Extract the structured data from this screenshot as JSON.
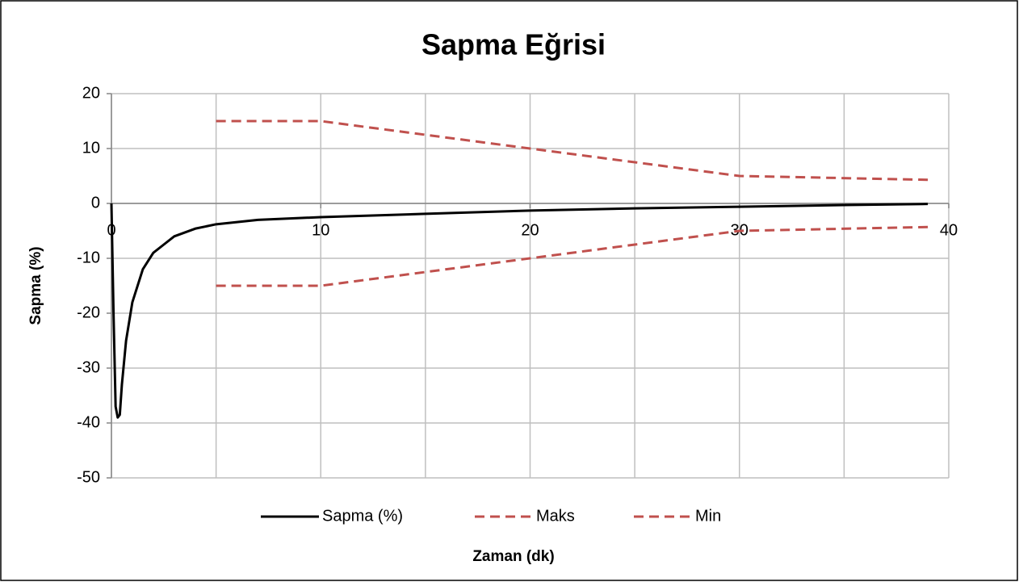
{
  "chart_data": {
    "type": "line",
    "title": "Sapma Eğrisi",
    "xlabel": "Zaman (dk)",
    "ylabel": "Sapma (%)",
    "xlim": [
      0,
      40
    ],
    "xticks": [
      0,
      10,
      20,
      30,
      40
    ],
    "x_minor_ticks": [
      5,
      15,
      25,
      35
    ],
    "ylim": [
      -50,
      20
    ],
    "yticks": [
      -50,
      -40,
      -30,
      -20,
      -10,
      0,
      10,
      20
    ],
    "grid": true,
    "legend": "bottom",
    "series": [
      {
        "name": "Sapma (%)",
        "color": "#000000",
        "dash": false,
        "x": [
          0,
          0.1,
          0.2,
          0.3,
          0.4,
          0.5,
          0.7,
          1,
          1.5,
          2,
          2.5,
          3,
          4,
          5,
          7,
          10,
          15,
          20,
          25,
          30,
          35,
          39
        ],
        "values": [
          0,
          -20,
          -37,
          -39,
          -38.5,
          -33,
          -25,
          -18,
          -12,
          -9,
          -7.5,
          -6,
          -4.6,
          -3.8,
          -3,
          -2.5,
          -1.9,
          -1.3,
          -0.9,
          -0.6,
          -0.3,
          -0.1
        ]
      },
      {
        "name": "Maks",
        "color": "#c0504d",
        "dash": true,
        "x": [
          5,
          10,
          20,
          30,
          39
        ],
        "values": [
          15,
          15,
          10,
          5,
          4.3
        ]
      },
      {
        "name": "Min",
        "color": "#c0504d",
        "dash": true,
        "x": [
          5,
          10,
          20,
          30,
          39
        ],
        "values": [
          -15,
          -15,
          -10,
          -5,
          -4.3
        ]
      }
    ]
  }
}
